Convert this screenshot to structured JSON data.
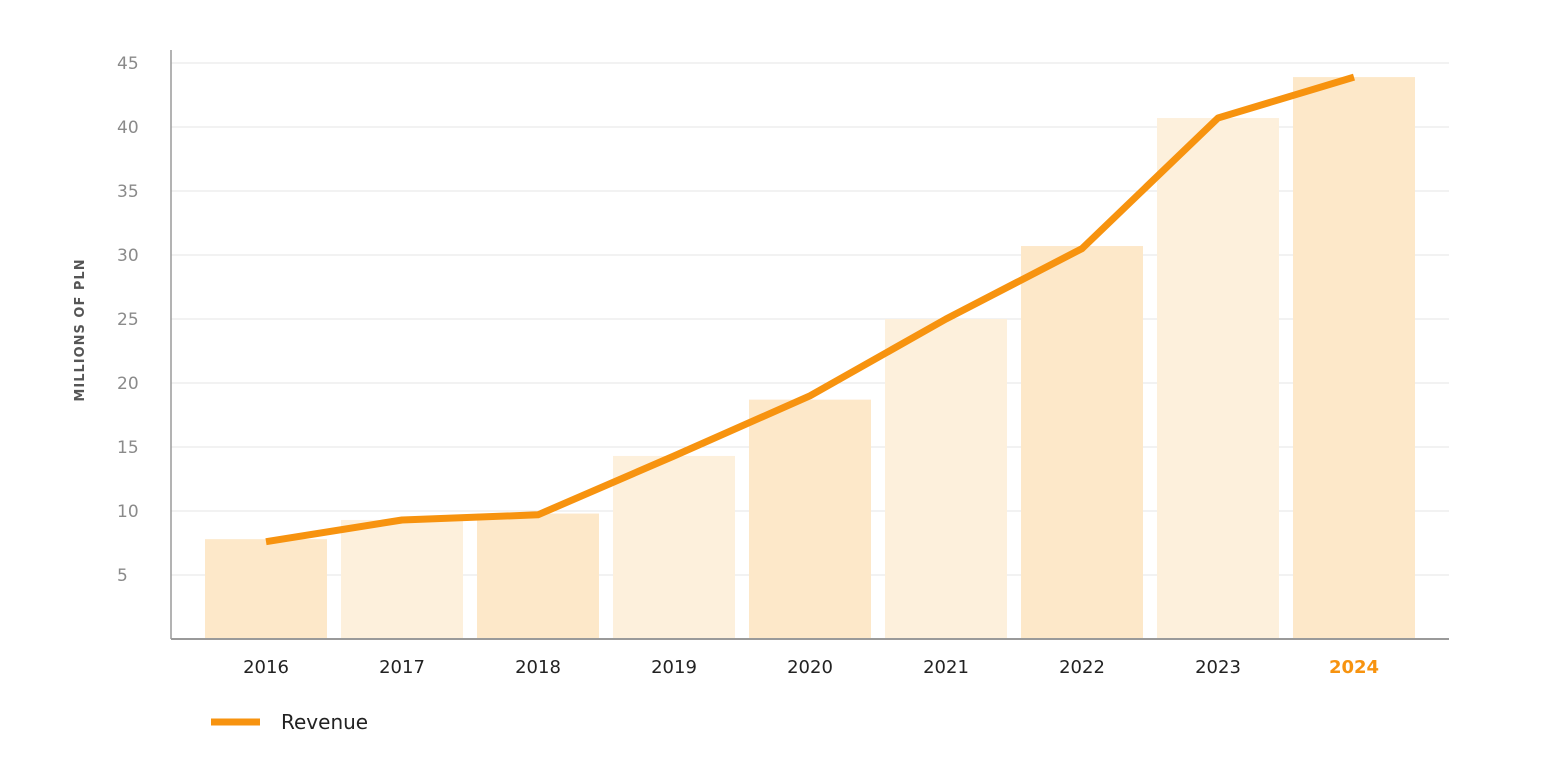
{
  "chart_data": {
    "type": "bar",
    "categories": [
      "2016",
      "2017",
      "2018",
      "2019",
      "2020",
      "2021",
      "2022",
      "2023",
      "2024"
    ],
    "highlight_category": "2024",
    "bars": [
      7.8,
      9.3,
      9.8,
      14.3,
      18.7,
      25.0,
      30.7,
      40.7,
      43.9
    ],
    "series": [
      {
        "name": "Revenue",
        "type": "line",
        "values": [
          7.6,
          9.3,
          9.7,
          14.3,
          19.0,
          25.0,
          30.5,
          40.7,
          43.9
        ]
      }
    ],
    "ylabel": "MILLIONS OF PLN",
    "xlabel": "",
    "ylim": [
      0,
      45
    ],
    "yticks": [
      5,
      10,
      15,
      20,
      25,
      30,
      35,
      40,
      45
    ],
    "grid": true,
    "legend_position": "bottom-left",
    "colors": {
      "line": "#f7930f",
      "bar_light": "#fdf0dc",
      "bar_dark": "#fde8c9",
      "grid": "#e6e6e6",
      "axis": "#9a9a9a",
      "highlight_text": "#f7930f"
    }
  }
}
